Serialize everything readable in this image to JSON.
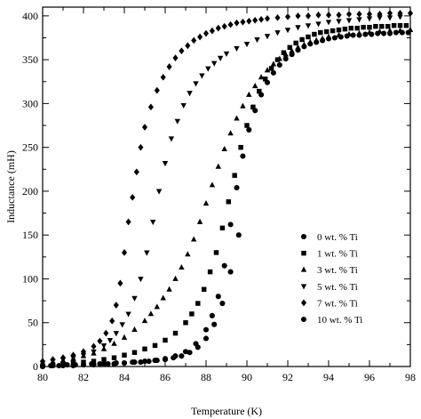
{
  "chart_data": {
    "type": "scatter",
    "xlabel": "Temperature (K)",
    "ylabel": "Inductance (mH)",
    "xlim": [
      80,
      98
    ],
    "ylim": [
      0,
      410
    ],
    "x_ticks": [
      "80",
      "82",
      "84",
      "86",
      "88",
      "90",
      "92",
      "94",
      "96",
      "98"
    ],
    "y_ticks": [
      "0",
      "50",
      "100",
      "150",
      "200",
      "250",
      "300",
      "350",
      "400"
    ],
    "grid": false,
    "legend_position": "right",
    "color": "#000000",
    "series": [
      {
        "name": "0 wt. % Ti",
        "marker": "circle",
        "x": [
          80.0,
          80.5,
          81.0,
          81.5,
          82.0,
          82.5,
          83.0,
          83.5,
          84.0,
          84.5,
          85.0,
          85.5,
          86.0,
          86.5,
          87.0,
          87.5,
          88.0,
          88.3,
          88.6,
          88.9,
          89.2,
          89.5,
          89.8,
          90.1,
          90.4,
          90.7,
          91.0,
          91.3,
          91.6,
          91.9,
          92.2,
          92.5,
          92.8,
          93.1,
          93.4,
          93.7,
          94.0,
          94.3,
          94.6,
          94.9,
          95.2,
          95.5,
          95.8,
          96.1,
          96.4,
          96.7,
          97.0,
          97.3,
          97.6,
          97.9
        ],
        "y": [
          0,
          1,
          1,
          1,
          2,
          2,
          3,
          3,
          4,
          5,
          6,
          7,
          9,
          12,
          17,
          26,
          42,
          58,
          80,
          115,
          162,
          204,
          240,
          270,
          292,
          310,
          324,
          335,
          344,
          351,
          356,
          361,
          365,
          368,
          370,
          372,
          374,
          375,
          376,
          377,
          378,
          378,
          379,
          379,
          380,
          380,
          380,
          381,
          381,
          381
        ]
      },
      {
        "name": "1 wt. % Ti",
        "marker": "square",
        "x": [
          80.0,
          80.5,
          81.0,
          81.5,
          82.0,
          82.5,
          83.0,
          83.5,
          84.0,
          84.5,
          85.0,
          85.5,
          86.0,
          86.5,
          87.0,
          87.3,
          87.6,
          87.9,
          88.2,
          88.5,
          88.8,
          89.1,
          89.4,
          89.7,
          90.0,
          90.3,
          90.6,
          90.9,
          91.2,
          91.5,
          91.8,
          92.1,
          92.4,
          92.7,
          93.0,
          93.3,
          93.6,
          93.9,
          94.2,
          94.5,
          94.8,
          95.1,
          95.4,
          95.7,
          96.0,
          96.3,
          96.6,
          96.9,
          97.2,
          97.5,
          97.8
        ],
        "y": [
          1,
          2,
          3,
          4,
          5,
          6,
          8,
          10,
          13,
          16,
          20,
          24,
          30,
          38,
          50,
          60,
          72,
          88,
          108,
          130,
          158,
          188,
          218,
          250,
          275,
          296,
          314,
          328,
          340,
          350,
          358,
          364,
          369,
          373,
          376,
          379,
          381,
          382,
          383,
          384,
          385,
          386,
          386,
          387,
          387,
          388,
          388,
          388,
          389,
          389,
          389
        ]
      },
      {
        "name": "3 wt. % Ti",
        "marker": "triangle-up",
        "x": [
          80.0,
          80.5,
          81.0,
          81.5,
          82.0,
          82.5,
          83.0,
          83.5,
          84.0,
          84.5,
          85.0,
          85.3,
          85.6,
          85.9,
          86.2,
          86.5,
          86.8,
          87.1,
          87.4,
          87.7,
          88.0,
          88.3,
          88.6,
          88.9,
          89.2,
          89.5,
          89.8,
          90.1,
          90.4,
          90.7,
          91.0,
          91.3,
          91.6,
          91.9,
          92.2,
          92.5,
          92.8,
          93.1,
          93.4,
          93.7,
          94.0,
          94.5,
          95.0,
          95.5,
          96.0,
          96.5,
          97.0,
          97.5,
          98.0
        ],
        "y": [
          3,
          5,
          7,
          9,
          12,
          15,
          20,
          26,
          33,
          42,
          52,
          60,
          68,
          78,
          88,
          100,
          113,
          128,
          145,
          165,
          186,
          207,
          228,
          248,
          266,
          283,
          297,
          310,
          320,
          330,
          338,
          345,
          351,
          356,
          360,
          364,
          367,
          370,
          372,
          374,
          376,
          378,
          379,
          380,
          381,
          382,
          383,
          383,
          384
        ]
      },
      {
        "name": "5 wt. % Ti",
        "marker": "triangle-down",
        "x": [
          80.0,
          80.5,
          81.0,
          81.5,
          82.0,
          82.5,
          83.0,
          83.3,
          83.6,
          83.9,
          84.2,
          84.5,
          84.8,
          85.1,
          85.4,
          85.7,
          86.0,
          86.3,
          86.6,
          86.9,
          87.2,
          87.5,
          87.8,
          88.1,
          88.4,
          88.7,
          89.0,
          89.5,
          90.0,
          90.5,
          91.0,
          91.5,
          92.0,
          92.5,
          93.0,
          93.5,
          94.0,
          94.5,
          95.0,
          95.5,
          96.0,
          96.5,
          97.0,
          97.5
        ],
        "y": [
          4,
          6,
          8,
          10,
          13,
          17,
          24,
          30,
          38,
          48,
          60,
          78,
          100,
          130,
          165,
          200,
          232,
          260,
          280,
          298,
          312,
          323,
          332,
          340,
          346,
          352,
          357,
          363,
          368,
          373,
          377,
          381,
          384,
          387,
          389,
          391,
          393,
          394,
          395,
          396,
          397,
          398,
          398,
          399
        ]
      },
      {
        "name": "7 wt. % Ti",
        "marker": "diamond",
        "x": [
          80.0,
          80.5,
          81.0,
          81.5,
          82.0,
          82.5,
          82.8,
          83.1,
          83.4,
          83.6,
          83.8,
          84.0,
          84.2,
          84.4,
          84.6,
          84.8,
          85.0,
          85.3,
          85.6,
          85.9,
          86.2,
          86.5,
          86.8,
          87.1,
          87.4,
          87.7,
          88.0,
          88.3,
          88.6,
          88.9,
          89.2,
          89.5,
          89.8,
          90.1,
          90.4,
          90.7,
          91.0,
          91.5,
          92.0,
          92.5,
          93.0,
          93.5,
          94.0,
          94.5,
          95.0,
          95.5,
          96.0,
          96.5,
          97.0,
          97.5,
          98.0
        ],
        "y": [
          6,
          8,
          10,
          13,
          17,
          23,
          29,
          38,
          52,
          70,
          95,
          130,
          165,
          193,
          222,
          250,
          273,
          296,
          315,
          330,
          342,
          352,
          360,
          366,
          372,
          376,
          380,
          383,
          386,
          388,
          390,
          392,
          393,
          394,
          395,
          396,
          397,
          398,
          399,
          400,
          400,
          401,
          401,
          401,
          402,
          402,
          402,
          402,
          403,
          403,
          403
        ]
      },
      {
        "name": "10 wt. % Ti",
        "marker": "circle",
        "x": [
          80.0,
          80.4,
          80.8,
          81.2,
          81.6,
          82.0,
          82.4,
          82.8,
          83.2,
          83.6,
          84.0,
          84.4,
          84.8,
          85.2,
          85.6,
          86.0,
          86.4,
          86.8,
          87.2,
          87.6,
          88.0,
          88.4,
          88.8,
          89.2,
          89.6
        ],
        "y": [
          1,
          1,
          1,
          2,
          2,
          2,
          3,
          3,
          3,
          4,
          4,
          5,
          5,
          6,
          7,
          8,
          10,
          12,
          16,
          22,
          32,
          48,
          72,
          108,
          150
        ]
      }
    ]
  }
}
